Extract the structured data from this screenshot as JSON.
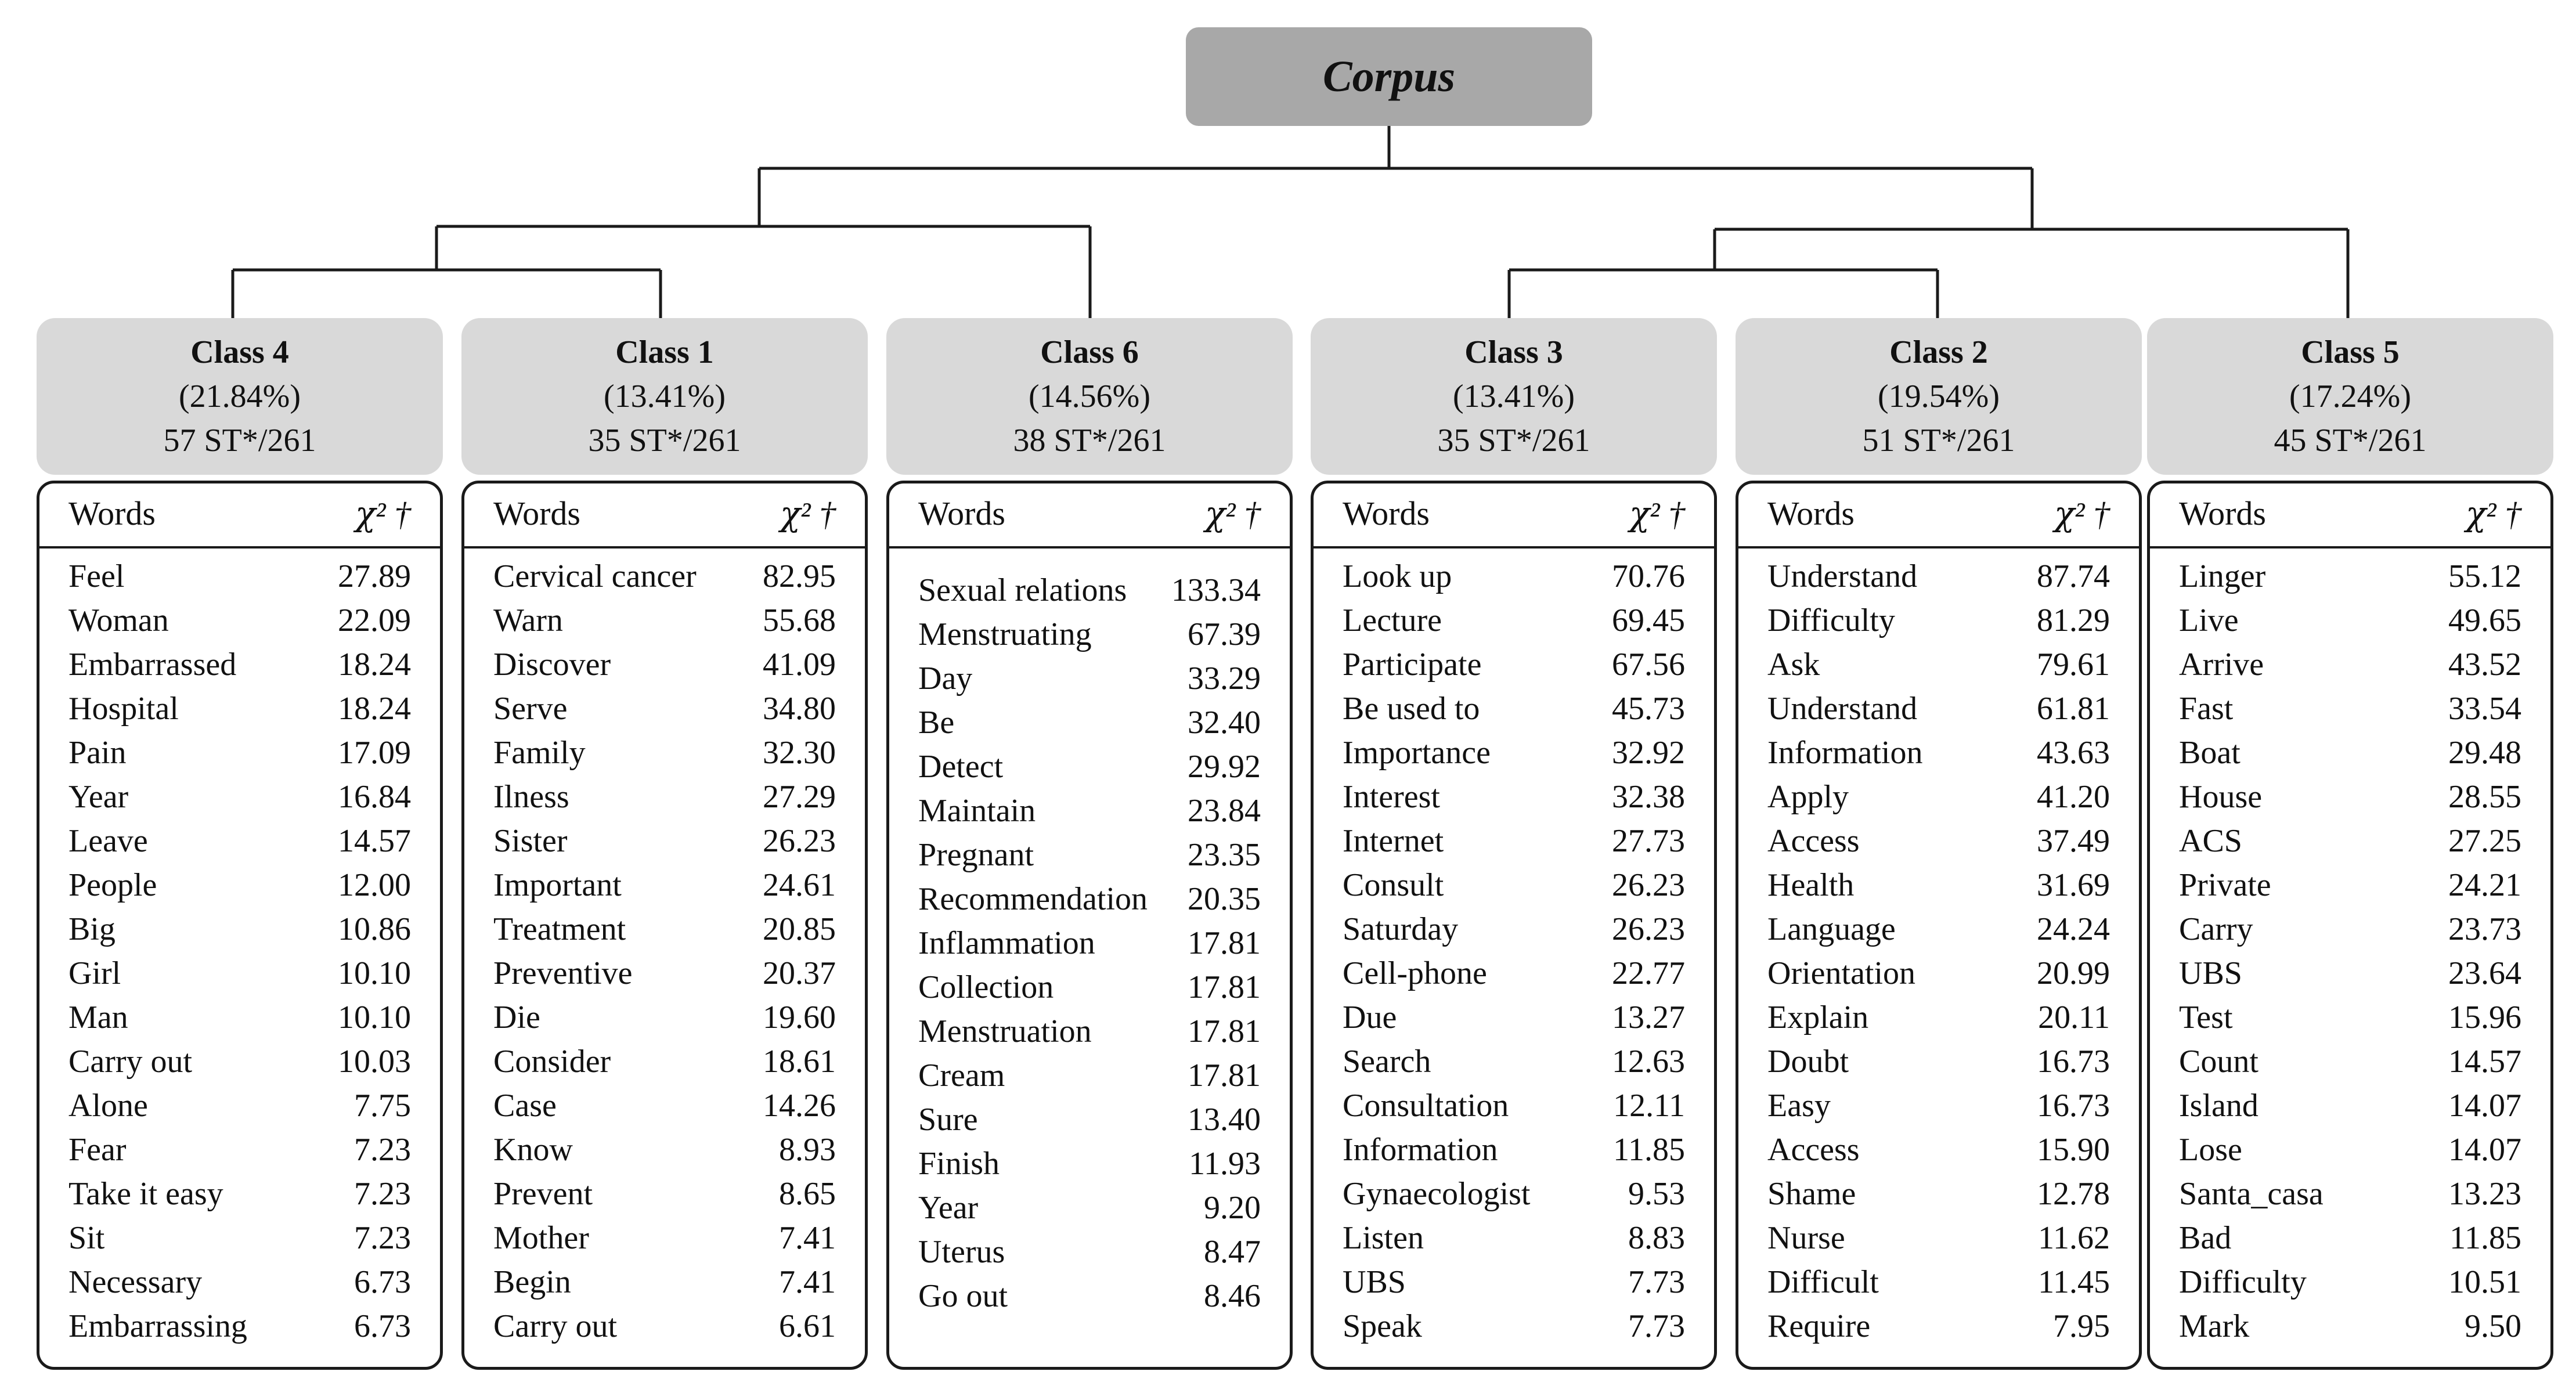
{
  "colors": {
    "corpus_fill": "#a8a8a8",
    "class_header_fill": "#d9d9d9",
    "line": "#1a1a1a",
    "table_border": "#1a1a1a"
  },
  "corpus": {
    "label": "Corpus"
  },
  "table_headers": {
    "words": "Words",
    "chi": "𝜒² †"
  },
  "classes": [
    {
      "title": "Class 4",
      "percent": "(21.84%)",
      "st": "57 ST*/261",
      "rows": [
        {
          "word": "Feel",
          "value": "27.89"
        },
        {
          "word": "Woman",
          "value": "22.09"
        },
        {
          "word": "Embarrassed",
          "value": "18.24"
        },
        {
          "word": "Hospital",
          "value": "18.24"
        },
        {
          "word": "Pain",
          "value": "17.09"
        },
        {
          "word": "Year",
          "value": "16.84"
        },
        {
          "word": "Leave",
          "value": "14.57"
        },
        {
          "word": "People",
          "value": "12.00"
        },
        {
          "word": "Big",
          "value": "10.86"
        },
        {
          "word": "Girl",
          "value": "10.10"
        },
        {
          "word": "Man",
          "value": "10.10"
        },
        {
          "word": "Carry out",
          "value": "10.03"
        },
        {
          "word": "Alone",
          "value": "7.75"
        },
        {
          "word": "Fear",
          "value": "7.23"
        },
        {
          "word": "Take it easy",
          "value": "7.23"
        },
        {
          "word": "Sit",
          "value": "7.23"
        },
        {
          "word": "Necessary",
          "value": "6.73"
        },
        {
          "word": "Embarrassing",
          "value": "6.73"
        }
      ]
    },
    {
      "title": "Class 1",
      "percent": "(13.41%)",
      "st": "35 ST*/261",
      "rows": [
        {
          "word": "Cervical cancer",
          "value": "82.95"
        },
        {
          "word": "Warn",
          "value": "55.68"
        },
        {
          "word": "Discover",
          "value": "41.09"
        },
        {
          "word": "Serve",
          "value": "34.80"
        },
        {
          "word": "Family",
          "value": "32.30"
        },
        {
          "word": "Ilness",
          "value": "27.29"
        },
        {
          "word": "Sister",
          "value": "26.23"
        },
        {
          "word": "Important",
          "value": "24.61"
        },
        {
          "word": "Treatment",
          "value": "20.85"
        },
        {
          "word": "Preventive",
          "value": "20.37"
        },
        {
          "word": "Die",
          "value": "19.60"
        },
        {
          "word": "Consider",
          "value": "18.61"
        },
        {
          "word": "Case",
          "value": "14.26"
        },
        {
          "word": "Know",
          "value": "8.93"
        },
        {
          "word": "Prevent",
          "value": "8.65"
        },
        {
          "word": "Mother",
          "value": "7.41"
        },
        {
          "word": "Begin",
          "value": "7.41"
        },
        {
          "word": "Carry out",
          "value": "6.61"
        }
      ]
    },
    {
      "title": "Class 6",
      "percent": "(14.56%)",
      "st": "38 ST*/261",
      "rows": [
        {
          "word": "Sexual relations",
          "value": "133.34"
        },
        {
          "word": "Menstruating",
          "value": "67.39"
        },
        {
          "word": "Day",
          "value": "33.29"
        },
        {
          "word": "Be",
          "value": "32.40"
        },
        {
          "word": "Detect",
          "value": "29.92"
        },
        {
          "word": "Maintain",
          "value": "23.84"
        },
        {
          "word": "Pregnant",
          "value": "23.35"
        },
        {
          "word": "Recommendation",
          "value": "20.35"
        },
        {
          "word": "Inflammation",
          "value": "17.81"
        },
        {
          "word": "Collection",
          "value": "17.81"
        },
        {
          "word": "Menstruation",
          "value": "17.81"
        },
        {
          "word": "Cream",
          "value": "17.81"
        },
        {
          "word": "Sure",
          "value": "13.40"
        },
        {
          "word": "Finish",
          "value": "11.93"
        },
        {
          "word": "Year",
          "value": "9.20"
        },
        {
          "word": "Uterus",
          "value": "8.47"
        },
        {
          "word": "Go out",
          "value": "8.46"
        }
      ]
    },
    {
      "title": "Class 3",
      "percent": "(13.41%)",
      "st": "35 ST*/261",
      "rows": [
        {
          "word": "Look up",
          "value": "70.76"
        },
        {
          "word": "Lecture",
          "value": "69.45"
        },
        {
          "word": "Participate",
          "value": "67.56"
        },
        {
          "word": "Be used to",
          "value": "45.73"
        },
        {
          "word": "Importance",
          "value": "32.92"
        },
        {
          "word": "Interest",
          "value": "32.38"
        },
        {
          "word": "Internet",
          "value": "27.73"
        },
        {
          "word": "Consult",
          "value": "26.23"
        },
        {
          "word": "Saturday",
          "value": "26.23"
        },
        {
          "word": "Cell-phone",
          "value": "22.77"
        },
        {
          "word": "Due",
          "value": "13.27"
        },
        {
          "word": "Search",
          "value": "12.63"
        },
        {
          "word": "Consultation",
          "value": "12.11"
        },
        {
          "word": "Information",
          "value": "11.85"
        },
        {
          "word": "Gynaecologist",
          "value": "9.53"
        },
        {
          "word": "Listen",
          "value": "8.83"
        },
        {
          "word": "UBS",
          "value": "7.73"
        },
        {
          "word": "Speak",
          "value": "7.73"
        }
      ]
    },
    {
      "title": "Class 2",
      "percent": "(19.54%)",
      "st": "51 ST*/261",
      "rows": [
        {
          "word": "Understand",
          "value": "87.74"
        },
        {
          "word": "Difficulty",
          "value": "81.29"
        },
        {
          "word": "Ask",
          "value": "79.61"
        },
        {
          "word": "Understand",
          "value": "61.81"
        },
        {
          "word": "Information",
          "value": "43.63"
        },
        {
          "word": "Apply",
          "value": "41.20"
        },
        {
          "word": "Access",
          "value": "37.49"
        },
        {
          "word": "Health",
          "value": "31.69"
        },
        {
          "word": "Language",
          "value": "24.24"
        },
        {
          "word": "Orientation",
          "value": "20.99"
        },
        {
          "word": "Explain",
          "value": "20.11"
        },
        {
          "word": "Doubt",
          "value": "16.73"
        },
        {
          "word": "Easy",
          "value": "16.73"
        },
        {
          "word": "Access",
          "value": "15.90"
        },
        {
          "word": "Shame",
          "value": "12.78"
        },
        {
          "word": "Nurse",
          "value": "11.62"
        },
        {
          "word": "Difficult",
          "value": "11.45"
        },
        {
          "word": "Require",
          "value": "7.95"
        }
      ]
    },
    {
      "title": "Class 5",
      "percent": "(17.24%)",
      "st": "45 ST*/261",
      "rows": [
        {
          "word": "Linger",
          "value": "55.12"
        },
        {
          "word": "Live",
          "value": "49.65"
        },
        {
          "word": "Arrive",
          "value": "43.52"
        },
        {
          "word": "Fast",
          "value": "33.54"
        },
        {
          "word": "Boat",
          "value": "29.48"
        },
        {
          "word": "House",
          "value": "28.55"
        },
        {
          "word": "ACS",
          "value": "27.25"
        },
        {
          "word": "Private",
          "value": "24.21"
        },
        {
          "word": "Carry",
          "value": "23.73"
        },
        {
          "word": "UBS",
          "value": "23.64"
        },
        {
          "word": "Test",
          "value": "15.96"
        },
        {
          "word": "Count",
          "value": "14.57"
        },
        {
          "word": "Island",
          "value": "14.07"
        },
        {
          "word": "Lose",
          "value": "14.07"
        },
        {
          "word": "Santa_casa",
          "value": "13.23"
        },
        {
          "word": "Bad",
          "value": "11.85"
        },
        {
          "word": "Difficulty",
          "value": "10.51"
        },
        {
          "word": "Mark",
          "value": "9.50"
        }
      ]
    }
  ]
}
